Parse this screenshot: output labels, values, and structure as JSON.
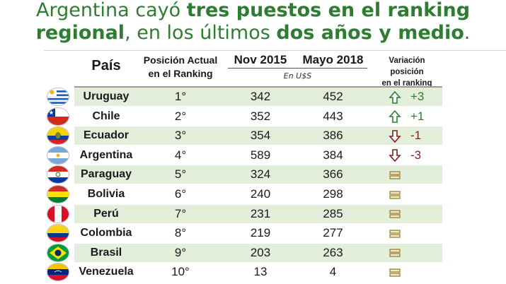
{
  "title": {
    "l1_a": "Argentina cayó ",
    "l1_b": "tres puestos en el ranking",
    "l2_a": "regional",
    "l2_b": ", en los últimos ",
    "l2_c": "dos años y medio",
    "l2_d": "."
  },
  "headers": {
    "pais": "País",
    "pos_1": "Posición Actual",
    "pos_2": "en el Ranking",
    "nov": "Nov 2015",
    "may": "Mayo 2018",
    "usd": "En U$S",
    "var_1": "Variación posición",
    "var_2": "en el ranking"
  },
  "rows": [
    {
      "country": "Uruguay",
      "pos": "1°",
      "nov": "342",
      "may": "452",
      "trend": "up-arrow",
      "var": "+3"
    },
    {
      "country": "Chile",
      "pos": "2°",
      "nov": "352",
      "may": "443",
      "trend": "up-arrow",
      "var": "+1"
    },
    {
      "country": "Ecuador",
      "pos": "3°",
      "nov": "354",
      "may": "386",
      "trend": "down-arrow",
      "var": "-1"
    },
    {
      "country": "Argentina",
      "pos": "4°",
      "nov": "589",
      "may": "384",
      "trend": "down-arrow",
      "var": "-3"
    },
    {
      "country": "Paraguay",
      "pos": "5°",
      "nov": "324",
      "may": "366",
      "trend": "equal",
      "var": ""
    },
    {
      "country": "Bolivia",
      "pos": "6°",
      "nov": "240",
      "may": "298",
      "trend": "equal",
      "var": ""
    },
    {
      "country": "Perú",
      "pos": "7°",
      "nov": "231",
      "may": "285",
      "trend": "equal",
      "var": ""
    },
    {
      "country": "Colombia",
      "pos": "8°",
      "nov": "219",
      "may": "277",
      "trend": "equal",
      "var": ""
    },
    {
      "country": "Brasil",
      "pos": "9°",
      "nov": "203",
      "may": "263",
      "trend": "equal",
      "var": ""
    },
    {
      "country": "Venezuela",
      "pos": "10°",
      "nov": "13",
      "may": "4",
      "trend": "equal",
      "var": ""
    }
  ],
  "colors": {
    "title": "#2e7d32",
    "band": "#e3eedb",
    "up": "#2e7d32",
    "down": "#7a1f1f",
    "equal": "#8a7a2a"
  }
}
